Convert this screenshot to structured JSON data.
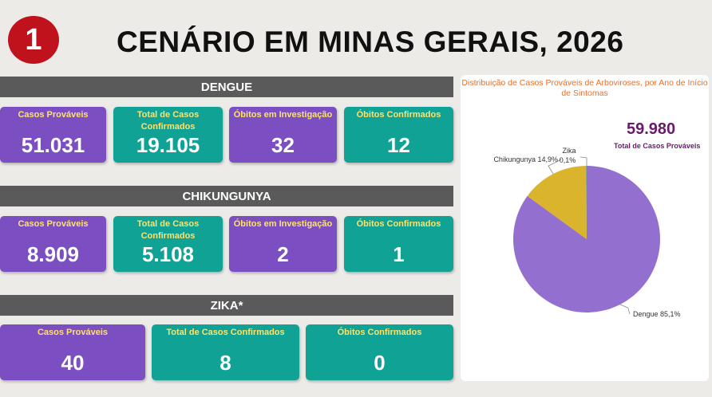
{
  "header": {
    "badge": "1",
    "title": "CENÁRIO EM MINAS GERAIS, 2026"
  },
  "sections": [
    {
      "name": "DENGUE",
      "cards": [
        {
          "label": "Casos Prováveis",
          "value": "51.031",
          "color": "#7b4fc1"
        },
        {
          "label": "Total de Casos Confirmados",
          "value": "19.105",
          "color": "#10a294"
        },
        {
          "label": "Óbitos em Investigação",
          "value": "32",
          "color": "#7b4fc1"
        },
        {
          "label": "Óbitos Confirmados",
          "value": "12",
          "color": "#10a294"
        }
      ]
    },
    {
      "name": "CHIKUNGUNYA",
      "cards": [
        {
          "label": "Casos Prováveis",
          "value": "8.909",
          "color": "#7b4fc1"
        },
        {
          "label": "Total de Casos Confirmados",
          "value": "5.108",
          "color": "#10a294"
        },
        {
          "label": "Óbitos em Investigação",
          "value": "2",
          "color": "#7b4fc1"
        },
        {
          "label": "Óbitos Confirmados",
          "value": "1",
          "color": "#10a294"
        }
      ]
    },
    {
      "name": "ZIKA*",
      "cards": [
        {
          "label": "Casos Prováveis",
          "value": "40",
          "color": "#7b4fc1"
        },
        {
          "label": "Total de Casos Confirmados",
          "value": "8",
          "color": "#10a294"
        },
        {
          "label": "Óbitos Confirmados",
          "value": "0",
          "color": "#10a294"
        }
      ]
    }
  ],
  "chart_data": {
    "type": "pie",
    "title": "Distribuição de Casos Prováveis de Arboviroses, por Ano de Início de Sintomas",
    "total_value": "59.980",
    "total_label": "Total de Casos Prováveis",
    "slices": [
      {
        "name": "Dengue",
        "value": 85.1,
        "label": "Dengue 85,1%",
        "color": "#9370d0"
      },
      {
        "name": "Chikungunya",
        "value": 14.9,
        "label": "Chikungunya 14,9%",
        "color": "#d9b42c"
      },
      {
        "name": "Zika",
        "value": 0.1,
        "label": "Zika 0,1%",
        "color": "#4a8fd6"
      }
    ]
  }
}
